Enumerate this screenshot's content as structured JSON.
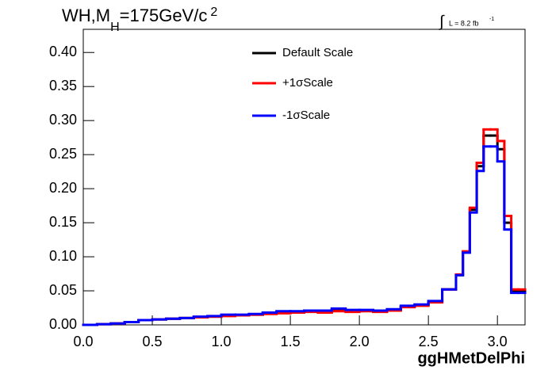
{
  "chart_data": {
    "type": "histogram",
    "title_parts": [
      "WH,M",
      "H",
      "=175GeV/c",
      "2"
    ],
    "lumi": {
      "symbol": "∫",
      "text": "L = 8.2 fb",
      "exponent": "-1"
    },
    "x_label": "ggHMetDelPhi",
    "bins": [
      0,
      0.1,
      0.2,
      0.3,
      0.4,
      0.5,
      0.6,
      0.7,
      0.8,
      0.9,
      1.0,
      1.1,
      1.2,
      1.3,
      1.4,
      1.5,
      1.6,
      1.7,
      1.8,
      1.9,
      2.0,
      2.1,
      2.2,
      2.3,
      2.4,
      2.5,
      2.6,
      2.7,
      2.75,
      2.8,
      2.85,
      2.9,
      2.95,
      3.0,
      3.05,
      3.1,
      3.15,
      3.2
    ],
    "series": [
      {
        "name": "Default Scale",
        "color": "#000000",
        "values": [
          0.0,
          0.001,
          0.002,
          0.004,
          0.007,
          0.008,
          0.009,
          0.01,
          0.011,
          0.012,
          0.014,
          0.014,
          0.015,
          0.017,
          0.019,
          0.019,
          0.02,
          0.019,
          0.022,
          0.02,
          0.021,
          0.02,
          0.022,
          0.027,
          0.029,
          0.034,
          0.052,
          0.073,
          0.107,
          0.169,
          0.233,
          0.278,
          0.278,
          0.258,
          0.15,
          0.05,
          0.05
        ]
      },
      {
        "name": "+1σScale",
        "color": "#ff0000",
        "values": [
          0.0,
          0.001,
          0.002,
          0.004,
          0.007,
          0.008,
          0.009,
          0.01,
          0.011,
          0.012,
          0.013,
          0.014,
          0.015,
          0.016,
          0.017,
          0.018,
          0.019,
          0.018,
          0.02,
          0.019,
          0.02,
          0.019,
          0.021,
          0.026,
          0.028,
          0.033,
          0.052,
          0.074,
          0.108,
          0.172,
          0.238,
          0.287,
          0.287,
          0.27,
          0.16,
          0.052,
          0.052
        ]
      },
      {
        "name": "-1σScale",
        "color": "#0000ff",
        "values": [
          0.0,
          0.001,
          0.002,
          0.004,
          0.007,
          0.008,
          0.009,
          0.01,
          0.012,
          0.013,
          0.015,
          0.015,
          0.016,
          0.018,
          0.02,
          0.02,
          0.021,
          0.021,
          0.024,
          0.022,
          0.022,
          0.021,
          0.023,
          0.028,
          0.03,
          0.035,
          0.052,
          0.073,
          0.106,
          0.165,
          0.226,
          0.262,
          0.262,
          0.24,
          0.14,
          0.047,
          0.047
        ]
      }
    ],
    "xlim": [
      0,
      3.2
    ],
    "ylim": [
      0,
      0.434
    ],
    "xticks": [
      {
        "value": 0,
        "label": "0.0"
      },
      {
        "value": 0.5,
        "label": "0.5"
      },
      {
        "value": 1,
        "label": "1.0"
      },
      {
        "value": 1.5,
        "label": "1.5"
      },
      {
        "value": 2,
        "label": "2.0"
      },
      {
        "value": 2.5,
        "label": "2.5"
      },
      {
        "value": 3,
        "label": "3.0"
      }
    ],
    "yticks": [
      {
        "value": 0,
        "label": "0.00"
      },
      {
        "value": 0.05,
        "label": "0.05"
      },
      {
        "value": 0.1,
        "label": "0.10"
      },
      {
        "value": 0.15,
        "label": "0.15"
      },
      {
        "value": 0.2,
        "label": "0.20"
      },
      {
        "value": 0.25,
        "label": "0.25"
      },
      {
        "value": 0.3,
        "label": "0.30"
      },
      {
        "value": 0.35,
        "label": "0.35"
      },
      {
        "value": 0.4,
        "label": "0.40"
      }
    ],
    "grid": false
  }
}
